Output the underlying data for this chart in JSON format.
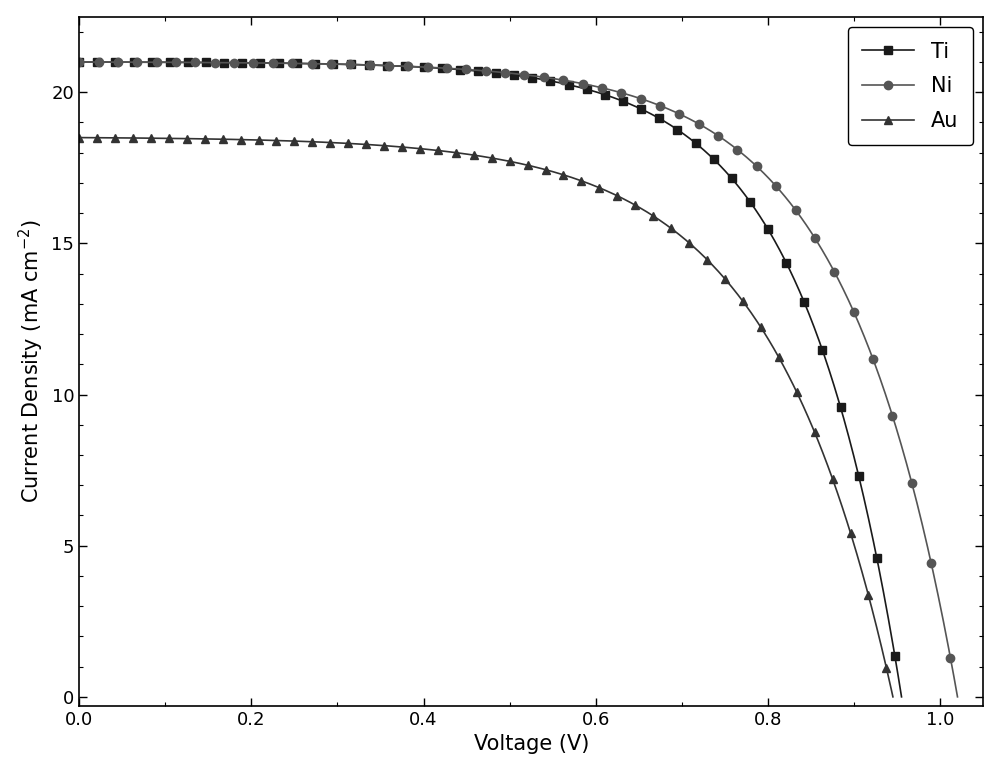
{
  "title": "",
  "xlabel": "Voltage (V)",
  "ylabel": "Current Density (mA cm$^{-2}$)",
  "xlim": [
    0.0,
    1.05
  ],
  "ylim": [
    -0.3,
    22.5
  ],
  "yticks": [
    0,
    5,
    10,
    15,
    20
  ],
  "xticks": [
    0.0,
    0.2,
    0.4,
    0.6,
    0.8,
    1.0
  ],
  "series": [
    {
      "label": "Ti",
      "color": "#1a1a1a",
      "marker": "s",
      "Jsc": 21.0,
      "Voc": 0.955,
      "n_id": 4.5
    },
    {
      "label": "Ni",
      "color": "#555555",
      "marker": "o",
      "Jsc": 21.0,
      "Voc": 1.02,
      "n_id": 5.0
    },
    {
      "label": "Au",
      "color": "#333333",
      "marker": "^",
      "Jsc": 18.5,
      "Voc": 0.945,
      "n_id": 5.5
    }
  ],
  "figsize": [
    10.0,
    7.71
  ],
  "dpi": 100,
  "marker_size": 6,
  "linewidth": 1.2,
  "background_color": "#ffffff",
  "legend_fontsize": 15,
  "axis_fontsize": 15,
  "tick_fontsize": 13
}
